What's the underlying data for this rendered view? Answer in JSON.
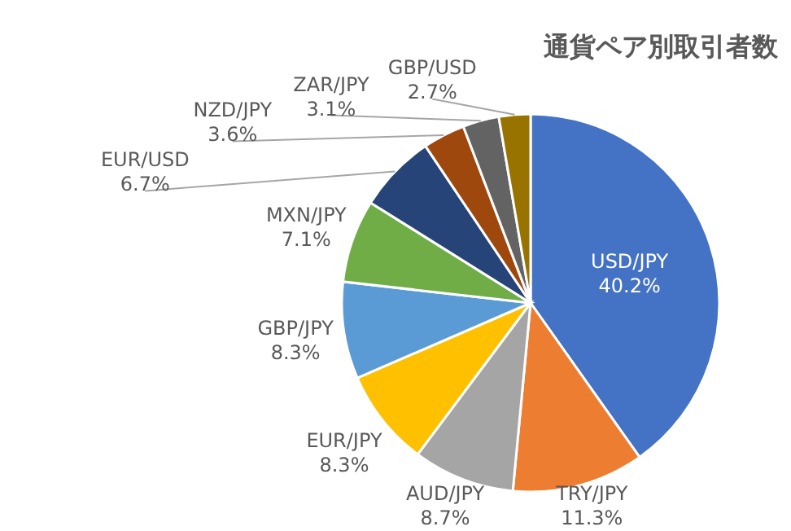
{
  "chart_data": {
    "type": "pie",
    "title": "通貨ペア別取引者数",
    "categories": [
      "USD/JPY",
      "TRY/JPY",
      "AUD/JPY",
      "EUR/JPY",
      "GBP/JPY",
      "MXN/JPY",
      "EUR/USD",
      "NZD/JPY",
      "ZAR/JPY",
      "GBP/USD"
    ],
    "values": [
      40.2,
      11.3,
      8.7,
      8.3,
      8.3,
      7.1,
      6.7,
      3.6,
      3.1,
      2.7
    ],
    "value_labels": [
      "40.2%",
      "11.3%",
      "8.7%",
      "8.3%",
      "8.3%",
      "7.1%",
      "6.7%",
      "3.6%",
      "3.1%",
      "2.7%"
    ],
    "colors": [
      "#4472c4",
      "#ed7d31",
      "#a5a5a5",
      "#ffc000",
      "#5b9bd5",
      "#70ad47",
      "#264478",
      "#9e480e",
      "#636363",
      "#997300"
    ]
  }
}
